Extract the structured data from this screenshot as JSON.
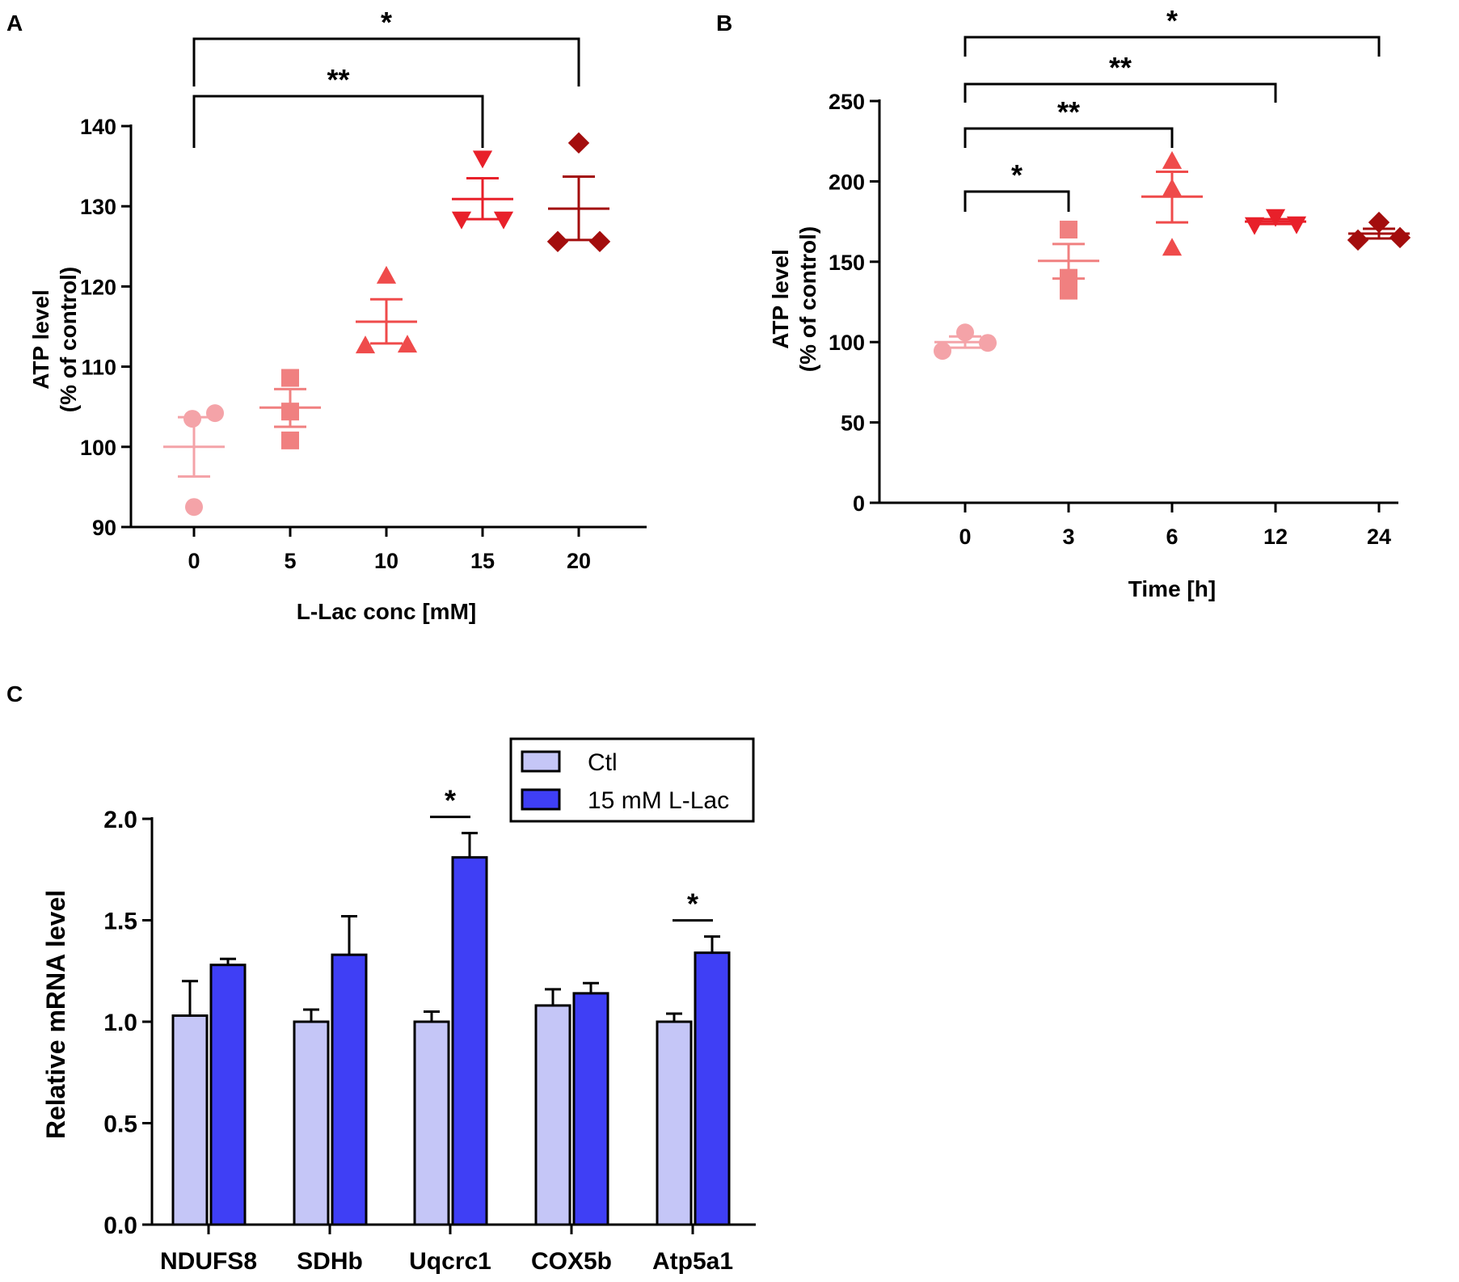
{
  "chart_data": [
    {
      "panel": "A",
      "type": "scatter",
      "xlabel": "L-Lac conc [mM]",
      "ylabel": [
        "ATP level",
        "(% of control)"
      ],
      "ylim": [
        90,
        140
      ],
      "yticks": [
        90,
        100,
        110,
        120,
        130,
        140
      ],
      "categories": [
        "0",
        "5",
        "10",
        "15",
        "20"
      ],
      "groups": [
        {
          "category": "0",
          "marker": "circle",
          "color": "#f4a3a8",
          "points": [
            92.5,
            103.5,
            104.2
          ],
          "mean": 100.0,
          "sem_low": 96.3,
          "sem_high": 103.7
        },
        {
          "category": "5",
          "marker": "square",
          "color": "#f08080",
          "points": [
            100.8,
            104.4,
            108.6
          ],
          "mean": 104.9,
          "sem_low": 102.5,
          "sem_high": 107.2
        },
        {
          "category": "10",
          "marker": "triangle-up",
          "color": "#ef4b4b",
          "points": [
            112.6,
            112.7,
            121.3
          ],
          "mean": 115.6,
          "sem_low": 112.9,
          "sem_high": 118.4
        },
        {
          "category": "15",
          "marker": "triangle-down",
          "color": "#e8202a",
          "points": [
            128.4,
            128.4,
            136.0
          ],
          "mean": 130.9,
          "sem_low": 128.4,
          "sem_high": 133.5
        },
        {
          "category": "20",
          "marker": "diamond",
          "color": "#a30d0d",
          "points": [
            125.6,
            125.6,
            137.9
          ],
          "mean": 129.7,
          "sem_low": 125.8,
          "sem_high": 133.7
        }
      ],
      "significance": [
        {
          "from": "0",
          "to": "15",
          "label": "**"
        },
        {
          "from": "0",
          "to": "20",
          "label": "*"
        }
      ]
    },
    {
      "panel": "B",
      "type": "scatter",
      "xlabel": "Time [h]",
      "ylabel": [
        "ATP level",
        "(% of control)"
      ],
      "ylim": [
        0,
        250
      ],
      "yticks": [
        0,
        50,
        100,
        150,
        200,
        250
      ],
      "categories": [
        "0",
        "3",
        "6",
        "12",
        "24"
      ],
      "groups": [
        {
          "category": "0",
          "marker": "circle",
          "color": "#f4a3a8",
          "points": [
            94.5,
            99.5,
            106.0
          ],
          "mean": 100.0,
          "sem_low": 96.5,
          "sem_high": 103.5
        },
        {
          "category": "3",
          "marker": "square",
          "color": "#f08080",
          "points": [
            132.0,
            140.0,
            170.0
          ],
          "mean": 150.5,
          "sem_low": 139.5,
          "sem_high": 161.0
        },
        {
          "category": "6",
          "marker": "triangle-up",
          "color": "#ef4b4b",
          "points": [
            158.5,
            195.5,
            212.5
          ],
          "mean": 190.5,
          "sem_low": 174.5,
          "sem_high": 206.0
        },
        {
          "category": "12",
          "marker": "triangle-down",
          "color": "#e8202a",
          "points": [
            173.0,
            173.5,
            178.0
          ],
          "mean": 175.0,
          "sem_low": 173.5,
          "sem_high": 176.5
        },
        {
          "category": "24",
          "marker": "diamond",
          "color": "#a30d0d",
          "points": [
            163.5,
            165.0,
            174.5
          ],
          "mean": 167.5,
          "sem_low": 164.5,
          "sem_high": 170.5
        }
      ],
      "significance": [
        {
          "from": "0",
          "to": "3",
          "label": "*"
        },
        {
          "from": "0",
          "to": "6",
          "label": "**"
        },
        {
          "from": "0",
          "to": "12",
          "label": "**"
        },
        {
          "from": "0",
          "to": "24",
          "label": "*"
        }
      ]
    },
    {
      "panel": "C",
      "type": "bar",
      "xlabel": "",
      "ylabel": "Relative mRNA level",
      "ylim": [
        0,
        2.0
      ],
      "yticks": [
        "0.0",
        "0.5",
        "1.0",
        "1.5",
        "2.0"
      ],
      "categories": [
        "NDUFS8",
        "SDHb",
        "Uqcrc1",
        "COX5b",
        "Atp5a1"
      ],
      "series": [
        {
          "name": "Ctl",
          "color": "#c5c6f7",
          "values": [
            1.03,
            1.0,
            1.0,
            1.08,
            1.0
          ],
          "errors": [
            0.17,
            0.06,
            0.05,
            0.08,
            0.04
          ]
        },
        {
          "name": "15 mM L-Lac",
          "color": "#3f3ff5",
          "values": [
            1.28,
            1.33,
            1.81,
            1.14,
            1.34
          ],
          "errors": [
            0.03,
            0.19,
            0.12,
            0.05,
            0.08
          ]
        }
      ],
      "significance": [
        {
          "category": "Uqcrc1",
          "label": "*"
        },
        {
          "category": "Atp5a1",
          "label": "*"
        }
      ]
    }
  ]
}
